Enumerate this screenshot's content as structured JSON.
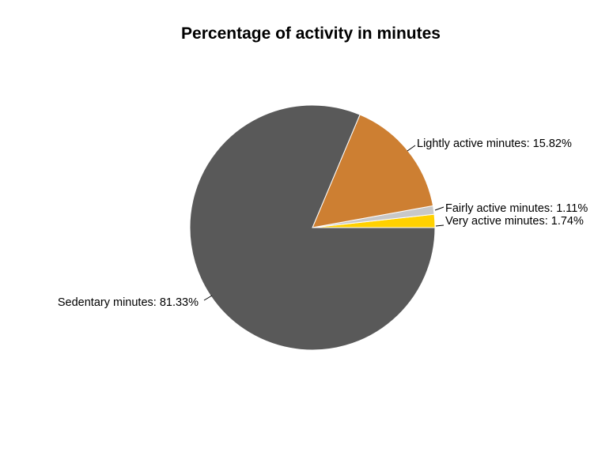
{
  "chart_data": {
    "type": "pie",
    "title": "Percentage of activity in minutes",
    "start_angle_deg": 0,
    "direction": "counterclockwise",
    "slices": [
      {
        "category": "Very active minutes",
        "value": 1.74,
        "label": "Very active minutes: 1.74%",
        "color": "#FFD100"
      },
      {
        "category": "Fairly active minutes",
        "value": 1.11,
        "label": "Fairly active minutes: 1.11%",
        "color": "#C8C8C8"
      },
      {
        "category": "Lightly active minutes",
        "value": 15.82,
        "label": "Lightly active minutes: 15.82%",
        "color": "#CD7F32"
      },
      {
        "category": "Sedentary minutes",
        "value": 81.33,
        "label": "Sedentary minutes: 81.33%",
        "color": "#595959"
      }
    ]
  }
}
